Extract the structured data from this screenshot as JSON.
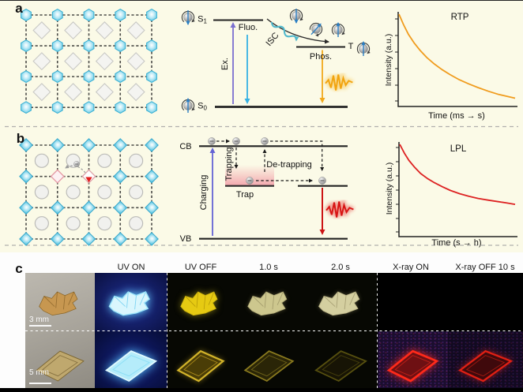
{
  "panel_a": {
    "label": "a",
    "s_base": "S",
    "s1_sub": "1",
    "s0_sub": "0",
    "t_label": "T",
    "ex_label": "Ex.",
    "fluo_label": "Fluo.",
    "isc_label": "ISC",
    "phos_label": "Phos."
  },
  "panel_b": {
    "label": "b",
    "cb_label": "CB",
    "vb_label": "VB",
    "charging_label": "Charging",
    "trapping_label": "Trapping",
    "detrapping_label": "De-trapping",
    "trap_label": "Trap"
  },
  "panel_c": {
    "label": "c",
    "column_headers": [
      "UV ON",
      "UV OFF",
      "1.0 s",
      "2.0 s",
      "X-ray ON",
      "X-ray OFF 10 s"
    ],
    "row1_scale": "3 mm",
    "row2_scale": "5 mm"
  },
  "chart_data": [
    {
      "type": "line",
      "title": "RTP",
      "xlabel": "Time (ms → s)",
      "ylabel": "Intensity (a.u.)",
      "grid": false,
      "legend_position": "none",
      "xlim": [
        0,
        1
      ],
      "ylim": [
        0,
        1.05
      ],
      "series": [
        {
          "name": "RTP decay",
          "color": "#f09c1e",
          "x": [
            0,
            0.04,
            0.08,
            0.13,
            0.18,
            0.24,
            0.3,
            0.37,
            0.44,
            0.52,
            0.6,
            0.68,
            0.77,
            0.86,
            0.93,
            1.0
          ],
          "y": [
            1.0,
            0.885,
            0.785,
            0.69,
            0.61,
            0.53,
            0.465,
            0.4,
            0.345,
            0.29,
            0.245,
            0.205,
            0.165,
            0.13,
            0.11,
            0.09
          ]
        }
      ]
    },
    {
      "type": "line",
      "title": "LPL",
      "xlabel": "Time (s → h)",
      "ylabel": "Intensity (a.u.)",
      "grid": false,
      "legend_position": "none",
      "xlim": [
        0,
        1
      ],
      "ylim": [
        0,
        1.05
      ],
      "series": [
        {
          "name": "LPL decay",
          "color": "#dd2222",
          "x": [
            0,
            0.04,
            0.08,
            0.13,
            0.18,
            0.24,
            0.3,
            0.37,
            0.44,
            0.52,
            0.6,
            0.68,
            0.77,
            0.86,
            0.93,
            1.0
          ],
          "y": [
            1.0,
            0.905,
            0.825,
            0.75,
            0.685,
            0.63,
            0.585,
            0.54,
            0.5,
            0.465,
            0.437,
            0.414,
            0.395,
            0.378,
            0.364,
            0.35
          ]
        }
      ]
    }
  ]
}
